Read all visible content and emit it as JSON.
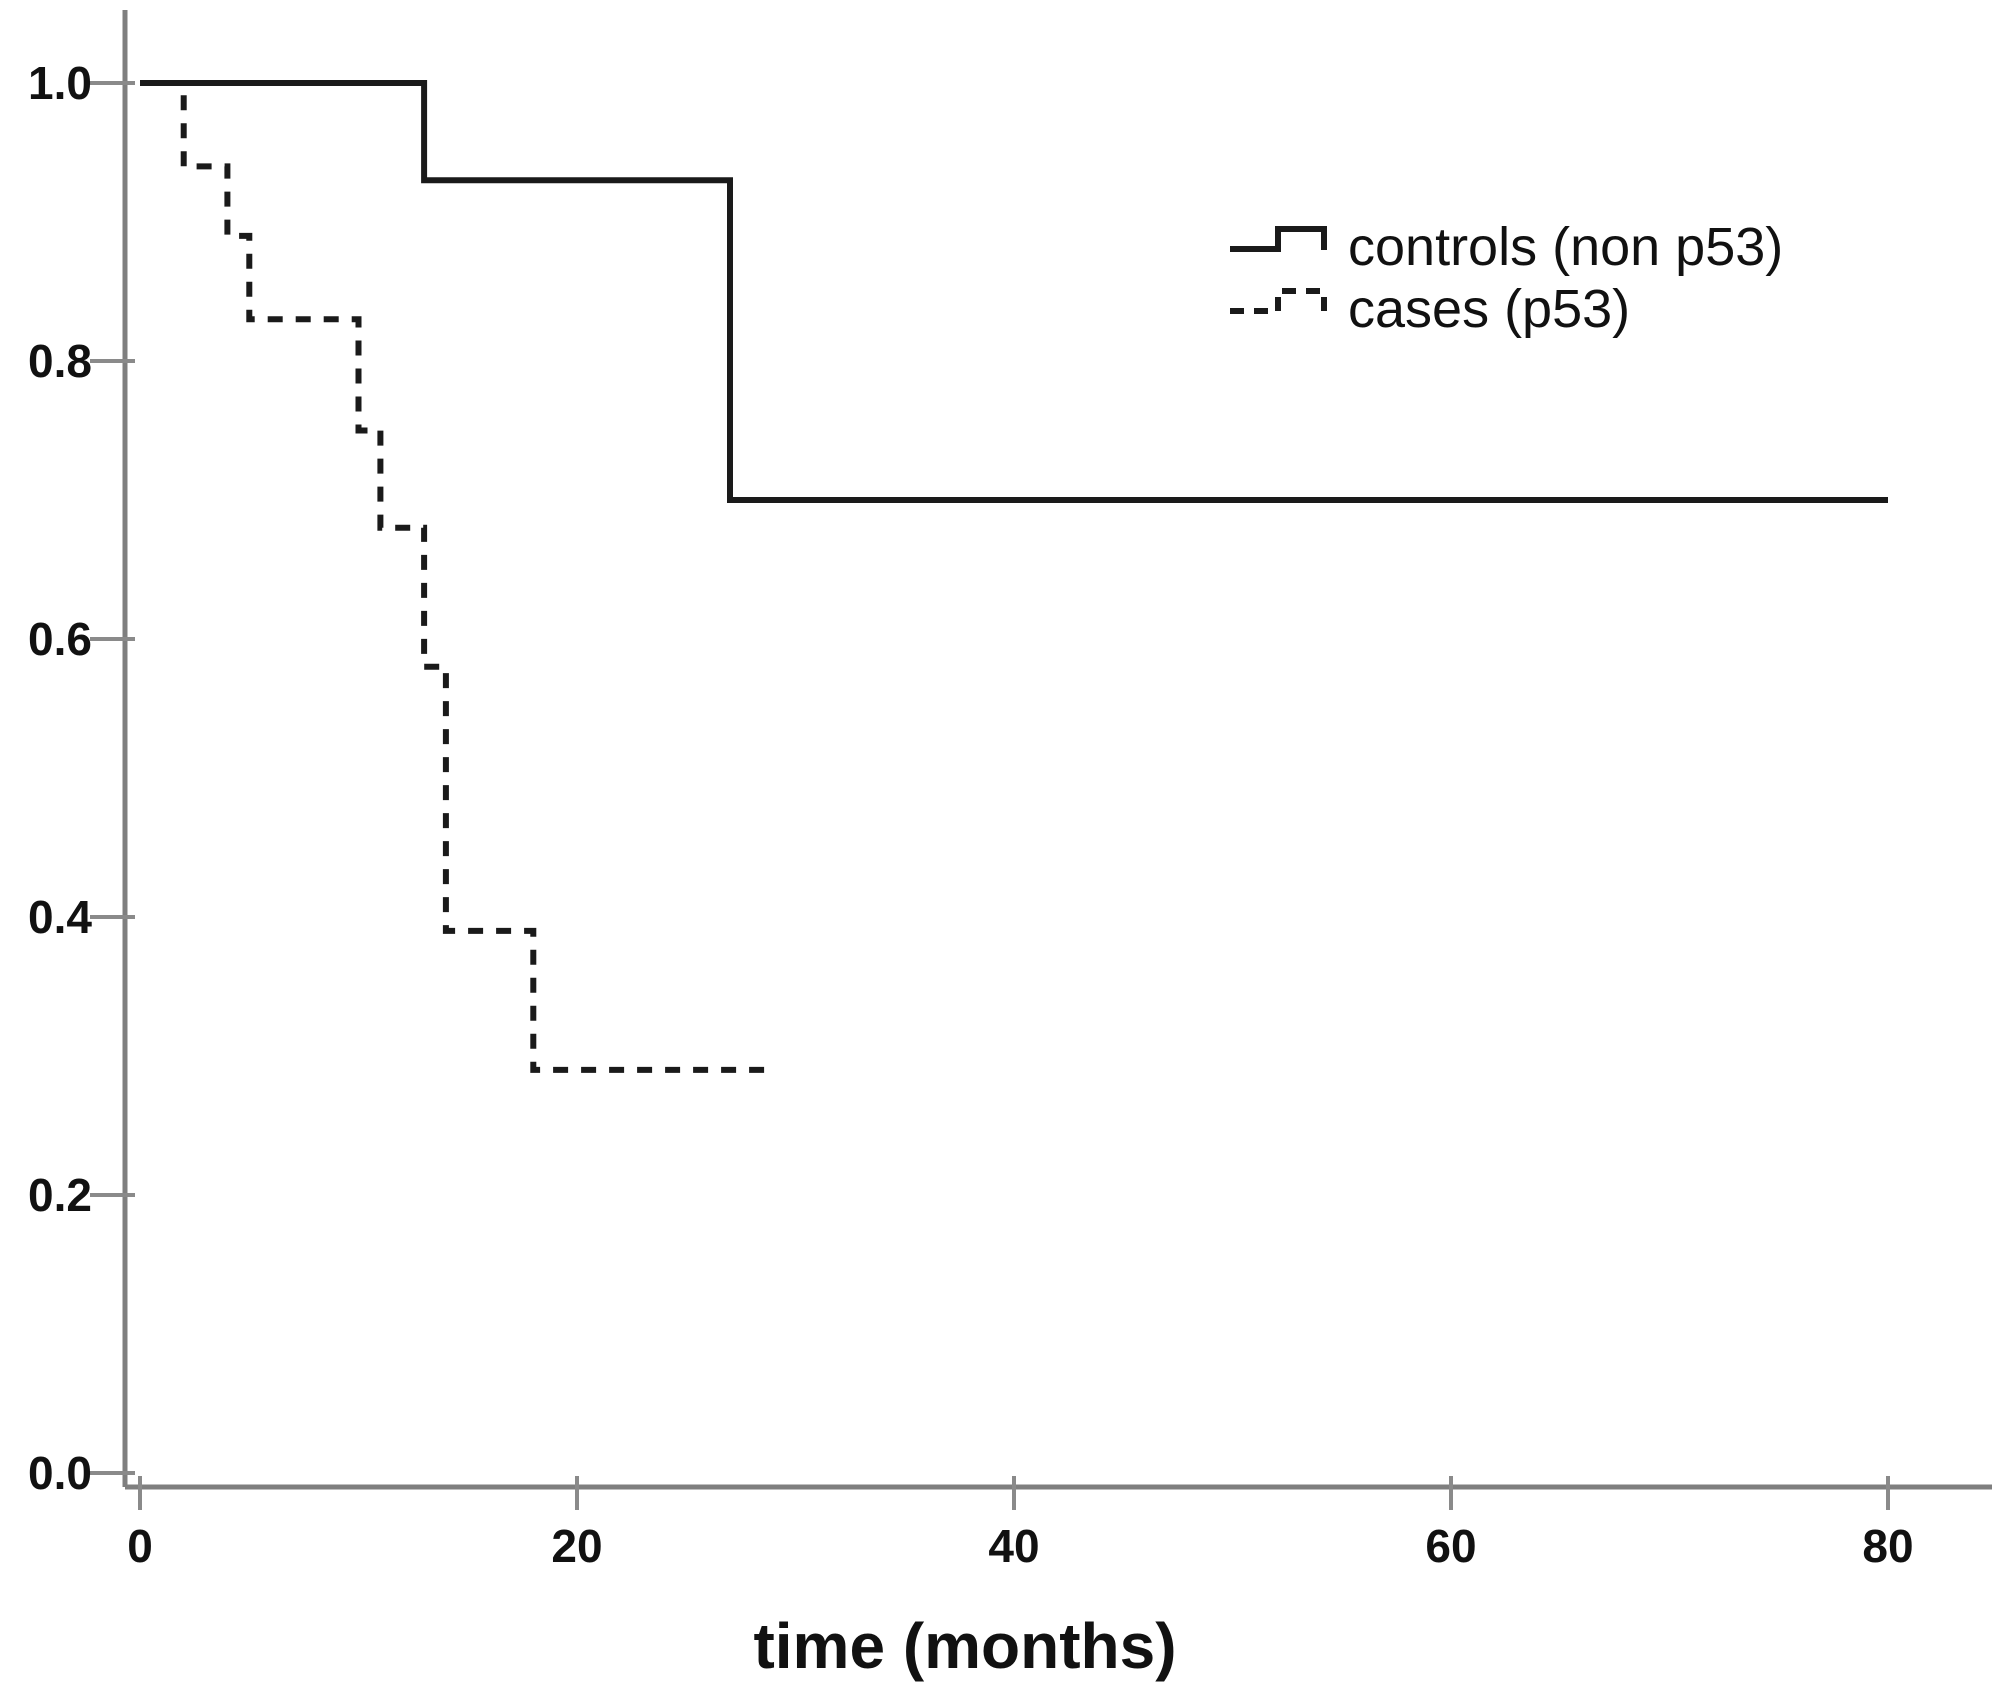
{
  "figure": {
    "kind": "kaplan-meier-survival-plot",
    "background": "#ffffff"
  },
  "colors": {
    "curve": "#1a1a1a",
    "axis": "#7f7f7f",
    "tick": "#8a8a8a",
    "text": "#111111"
  },
  "chart_data": {
    "type": "line",
    "subtype": "step-survival",
    "title": "",
    "xlabel": "time (months)",
    "ylabel": "",
    "xlim": [
      0,
      85
    ],
    "ylim": [
      0.0,
      1.0
    ],
    "grid": false,
    "legend_position": "upper-right",
    "xticks": [
      {
        "v": 0,
        "label": "0"
      },
      {
        "v": 20,
        "label": "20"
      },
      {
        "v": 40,
        "label": "40"
      },
      {
        "v": 60,
        "label": "60"
      },
      {
        "v": 80,
        "label": "80"
      }
    ],
    "yticks": [
      {
        "v": 0.0,
        "label": "0.0"
      },
      {
        "v": 0.2,
        "label": "0.2"
      },
      {
        "v": 0.4,
        "label": "0.4"
      },
      {
        "v": 0.6,
        "label": "0.6"
      },
      {
        "v": 0.8,
        "label": "0.8"
      },
      {
        "v": 1.0,
        "label": "1.0"
      }
    ],
    "series": [
      {
        "name": "controls (non p53)",
        "line_style": "solid",
        "color": "#1a1a1a",
        "points": [
          [
            0,
            1.0
          ],
          [
            13,
            1.0
          ],
          [
            13,
            0.93
          ],
          [
            27,
            0.93
          ],
          [
            27,
            0.7
          ],
          [
            80,
            0.7
          ]
        ]
      },
      {
        "name": "cases (p53)",
        "line_style": "dashed",
        "color": "#1a1a1a",
        "points": [
          [
            0,
            1.0
          ],
          [
            2,
            1.0
          ],
          [
            2,
            0.94
          ],
          [
            4,
            0.94
          ],
          [
            4,
            0.89
          ],
          [
            5,
            0.89
          ],
          [
            5,
            0.83
          ],
          [
            10,
            0.83
          ],
          [
            10,
            0.75
          ],
          [
            11,
            0.75
          ],
          [
            11,
            0.68
          ],
          [
            13,
            0.68
          ],
          [
            13,
            0.58
          ],
          [
            14,
            0.58
          ],
          [
            14,
            0.39
          ],
          [
            18,
            0.39
          ],
          [
            18,
            0.29
          ],
          [
            29,
            0.29
          ]
        ]
      }
    ]
  }
}
